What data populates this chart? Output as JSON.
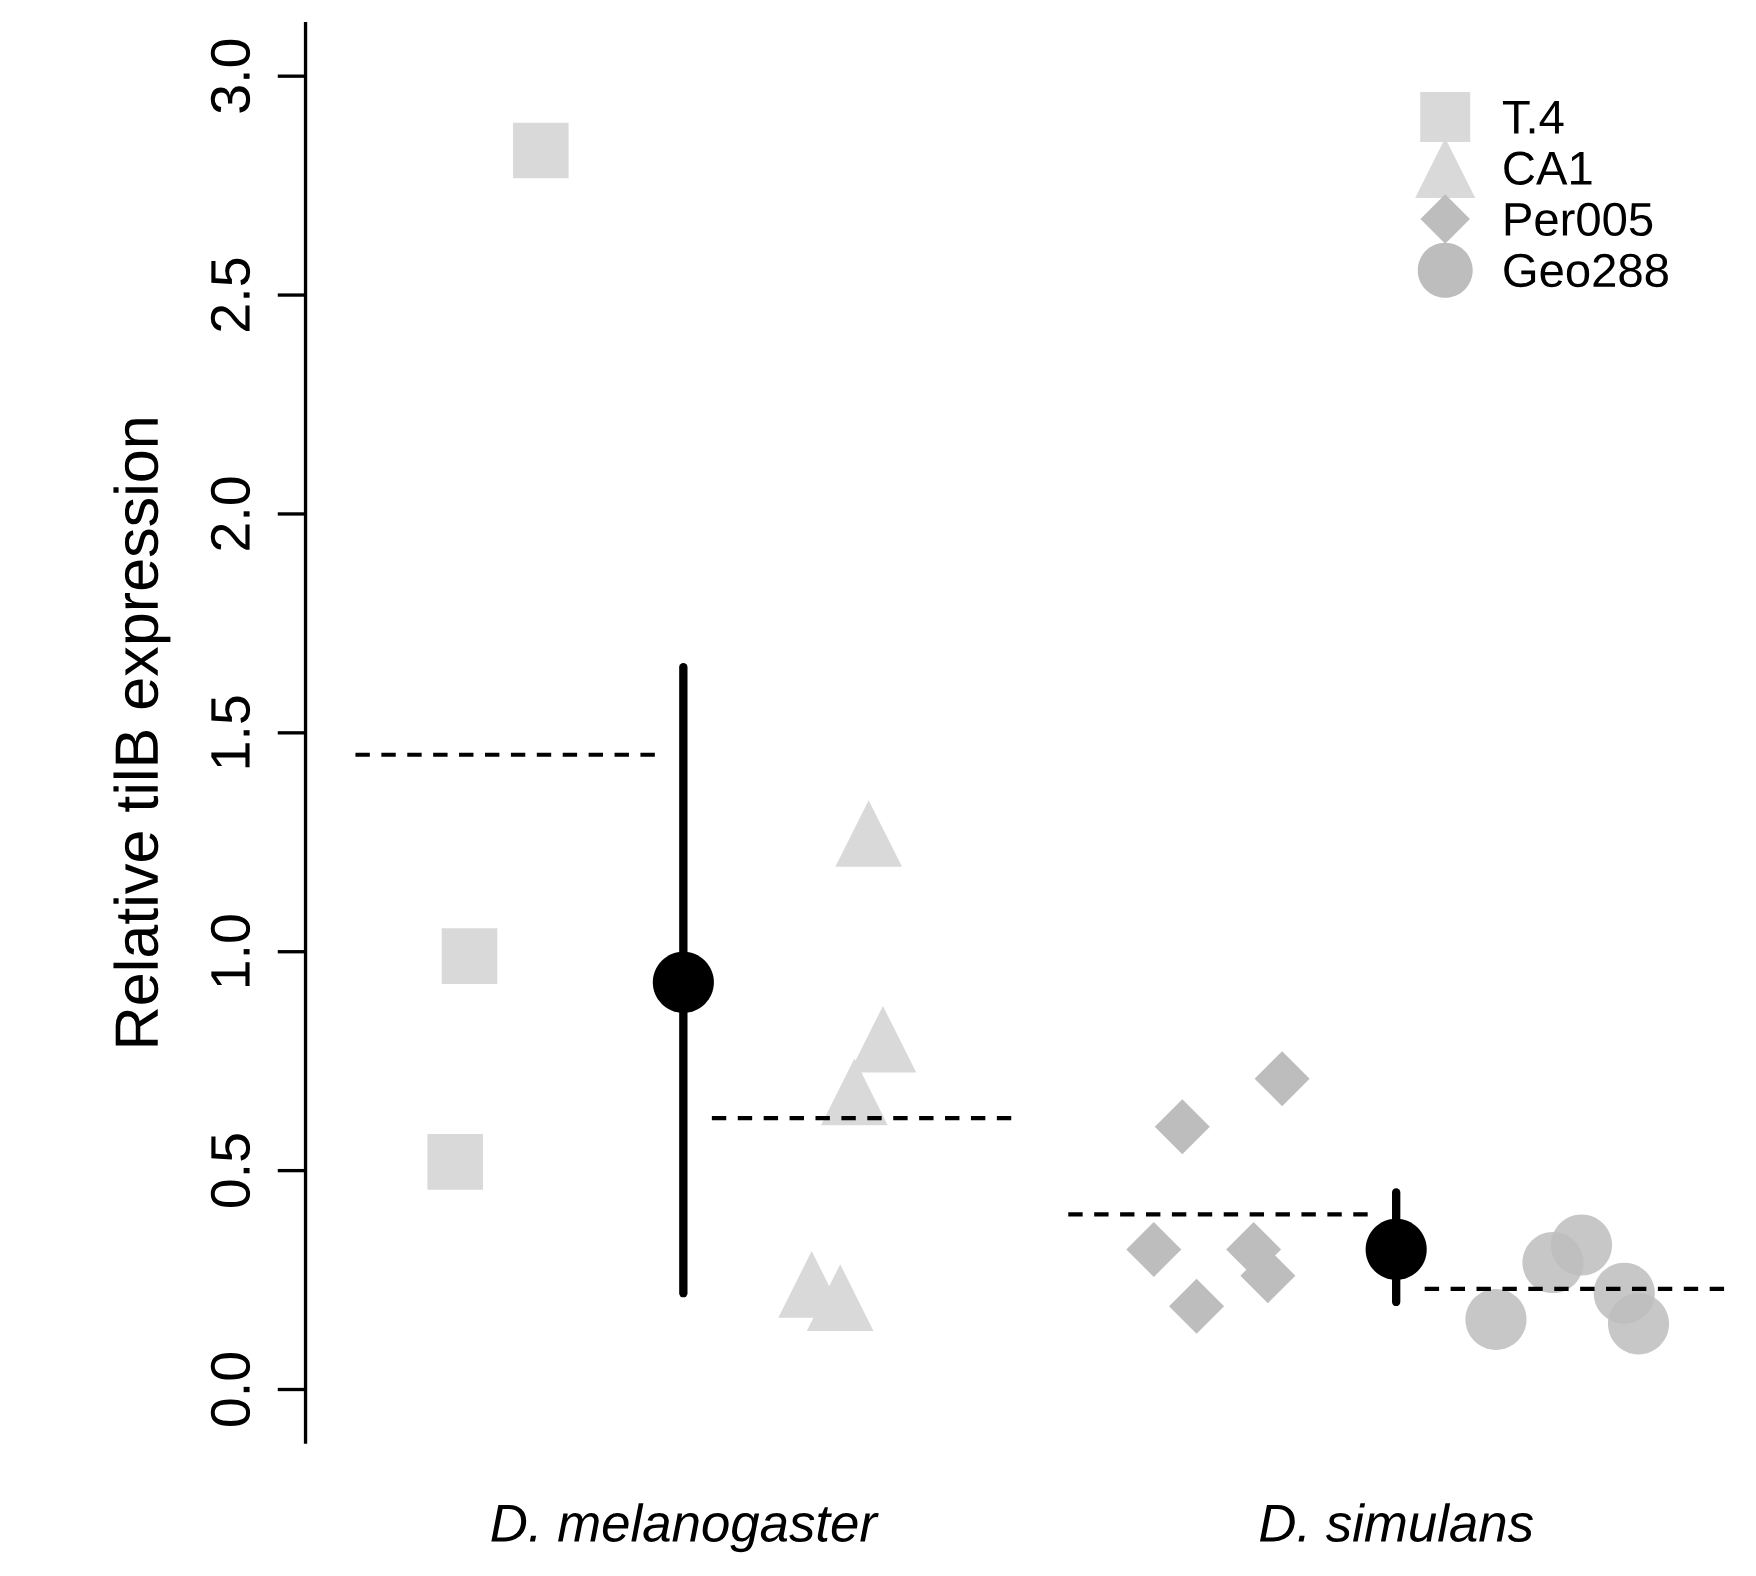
{
  "chart_data": {
    "type": "scatter",
    "ylabel": "Relative tilB expression",
    "categories": [
      null,
      null,
      null,
      null,
      null,
      null,
      null,
      null,
      null,
      null,
      null,
      null,
      null,
      null,
      null,
      null,
      null,
      null,
      null,
      null,
      null,
      null,
      null,
      null,
      null,
      null,
      "D. melanogaster",
      null,
      null,
      null,
      null,
      null,
      null,
      null,
      null,
      null,
      null,
      null,
      null,
      null,
      null,
      null,
      null,
      null,
      null,
      null,
      null,
      null,
      null,
      null,
      null,
      null,
      null,
      null,
      null,
      null,
      null,
      null,
      null,
      null,
      null,
      null,
      null,
      null,
      null,
      null,
      null,
      null,
      null,
      null,
      null,
      null,
      null,
      null,
      null,
      null,
      "D. simulans",
      null,
      null,
      null,
      null,
      null,
      null,
      null,
      null,
      null,
      null,
      null,
      null,
      null,
      null,
      null,
      null,
      null,
      null,
      null,
      null,
      null,
      null,
      null,
      null
    ],
    "ylim": [
      -0.12,
      3.12
    ],
    "yticks": [
      {
        "value": 0,
        "label": "0.0"
      },
      {
        "value": 0.5,
        "label": "0.5"
      },
      {
        "value": 1,
        "label": "1.0"
      },
      {
        "value": 1.5,
        "label": "1.5"
      },
      {
        "value": 2,
        "label": "2.0"
      },
      {
        "value": 2.5,
        "label": "2.5"
      },
      {
        "value": 3,
        "label": "3.0"
      }
    ],
    "grid": false,
    "legend": "top right",
    "series": [
      {
        "type": "line",
        "line_style": "dashed",
        "marker": "none",
        "color": "#000000",
        "values": [
          null,
          null,
          null,
          1.45,
          1.45,
          1.45,
          1.45,
          1.45,
          1.45,
          1.45,
          1.45,
          1.45,
          1.45,
          1.45,
          1.45,
          1.45,
          1.45,
          1.45,
          1.45,
          1.45,
          1.45,
          1.45,
          1.45,
          1.45,
          1.45,
          null,
          null,
          null,
          null,
          null,
          null,
          null,
          null,
          null,
          null,
          null,
          null,
          null,
          null,
          null,
          null,
          null,
          null,
          null,
          null,
          null,
          null,
          null,
          null,
          null,
          null,
          null,
          null,
          null,
          null,
          null,
          null,
          null,
          null,
          null,
          null,
          null,
          null,
          null,
          null,
          null,
          null,
          null,
          null,
          null,
          null,
          null,
          null,
          null,
          null,
          null,
          null,
          null,
          null,
          null,
          null,
          null,
          null,
          null,
          null,
          null,
          null,
          null,
          null,
          null,
          null,
          null,
          null,
          null,
          null,
          null,
          null,
          null,
          null,
          null,
          null
        ]
      },
      {
        "type": "line",
        "line_style": "dashed",
        "marker": "none",
        "color": "#000000",
        "values": [
          null,
          null,
          null,
          null,
          null,
          null,
          null,
          null,
          null,
          null,
          null,
          null,
          null,
          null,
          null,
          null,
          null,
          null,
          null,
          null,
          null,
          null,
          null,
          null,
          null,
          null,
          null,
          null,
          0.62,
          0.62,
          0.62,
          0.62,
          0.62,
          0.62,
          0.62,
          0.62,
          0.62,
          0.62,
          0.62,
          0.62,
          0.62,
          0.62,
          0.62,
          0.62,
          0.62,
          0.62,
          0.62,
          0.62,
          0.62,
          0.62,
          null,
          null,
          null,
          null,
          null,
          null,
          null,
          null,
          null,
          null,
          null,
          null,
          null,
          null,
          null,
          null,
          null,
          null,
          null,
          null,
          null,
          null,
          null,
          null,
          null,
          null,
          null,
          null,
          null,
          null,
          null,
          null,
          null,
          null,
          null,
          null,
          null,
          null,
          null,
          null,
          null,
          null,
          null,
          null,
          null,
          null,
          null,
          null,
          null,
          null,
          null
        ]
      },
      {
        "type": "line",
        "line_style": "dashed",
        "marker": "none",
        "color": "#000000",
        "values": [
          null,
          null,
          null,
          null,
          null,
          null,
          null,
          null,
          null,
          null,
          null,
          null,
          null,
          null,
          null,
          null,
          null,
          null,
          null,
          null,
          null,
          null,
          null,
          null,
          null,
          null,
          null,
          null,
          null,
          null,
          null,
          null,
          null,
          null,
          null,
          null,
          null,
          null,
          null,
          null,
          null,
          null,
          null,
          null,
          null,
          null,
          null,
          null,
          null,
          null,
          null,
          null,
          null,
          0.4,
          0.4,
          0.4,
          0.4,
          0.4,
          0.4,
          0.4,
          0.4,
          0.4,
          0.4,
          0.4,
          0.4,
          0.4,
          0.4,
          0.4,
          0.4,
          0.4,
          0.4,
          0.4,
          0.4,
          0.4,
          0.4,
          null,
          null,
          null,
          null,
          null,
          null,
          null,
          null,
          null,
          null,
          null,
          null,
          null,
          null,
          null,
          null,
          null,
          null,
          null,
          null,
          null,
          null,
          null,
          null,
          null,
          null
        ]
      },
      {
        "type": "line",
        "line_style": "dashed",
        "marker": "none",
        "color": "#000000",
        "values": [
          null,
          null,
          null,
          null,
          null,
          null,
          null,
          null,
          null,
          null,
          null,
          null,
          null,
          null,
          null,
          null,
          null,
          null,
          null,
          null,
          null,
          null,
          null,
          null,
          null,
          null,
          null,
          null,
          null,
          null,
          null,
          null,
          null,
          null,
          null,
          null,
          null,
          null,
          null,
          null,
          null,
          null,
          null,
          null,
          null,
          null,
          null,
          null,
          null,
          null,
          null,
          null,
          null,
          null,
          null,
          null,
          null,
          null,
          null,
          null,
          null,
          null,
          null,
          null,
          null,
          null,
          null,
          null,
          null,
          null,
          null,
          null,
          null,
          null,
          null,
          null,
          null,
          null,
          0.23,
          0.23,
          0.23,
          0.23,
          0.23,
          0.23,
          0.23,
          0.23,
          0.23,
          0.23,
          0.23,
          0.23,
          0.23,
          0.23,
          0.23,
          0.23,
          0.23,
          0.23,
          0.23,
          0.23,
          0.23,
          0.23,
          null
        ]
      },
      {
        "name": "T.4",
        "marker": "square",
        "color": "#d9d9d9",
        "values": [
          null,
          null,
          null,
          null,
          null,
          null,
          null,
          null,
          null,
          null,
          0.52,
          0.99,
          null,
          null,
          null,
          null,
          2.83,
          null,
          null,
          null,
          null,
          null,
          null,
          null,
          null,
          null,
          null,
          null,
          null,
          null,
          null,
          null,
          null,
          null,
          null,
          null,
          null,
          null,
          null,
          null,
          null,
          null,
          null,
          null,
          null,
          null,
          null,
          null,
          null,
          null,
          null,
          null,
          null,
          null,
          null,
          null,
          null,
          null,
          null,
          null,
          null,
          null,
          null,
          null,
          null,
          null,
          null,
          null,
          null,
          null,
          null,
          null,
          null,
          null,
          null,
          null,
          null,
          null,
          null,
          null,
          null,
          null,
          null,
          null,
          null,
          null,
          null,
          null,
          null,
          null,
          null,
          null,
          null,
          null,
          null,
          null,
          null,
          null,
          null,
          null,
          null
        ]
      },
      {
        "name": "CA1",
        "marker": "triangle",
        "color": "#d9d9d9",
        "values": [
          null,
          null,
          null,
          null,
          null,
          null,
          null,
          null,
          null,
          null,
          null,
          null,
          null,
          null,
          null,
          null,
          null,
          null,
          null,
          null,
          null,
          null,
          null,
          null,
          null,
          null,
          null,
          null,
          null,
          null,
          null,
          null,
          null,
          null,
          null,
          0.24,
          null,
          0.21,
          0.68,
          1.27,
          0.8,
          null,
          null,
          null,
          null,
          null,
          null,
          null,
          null,
          null,
          null,
          null,
          null,
          null,
          null,
          null,
          null,
          null,
          null,
          null,
          null,
          null,
          null,
          null,
          null,
          null,
          null,
          null,
          null,
          null,
          null,
          null,
          null,
          null,
          null,
          null,
          null,
          null,
          null,
          null,
          null,
          null,
          null,
          null,
          null,
          null,
          null,
          null,
          null,
          null,
          null,
          null,
          null,
          null,
          null,
          null,
          null,
          null,
          null,
          null,
          null
        ]
      },
      {
        "name": "Per005",
        "marker": "diamond",
        "color": "#bdbdbd",
        "values": [
          null,
          null,
          null,
          null,
          null,
          null,
          null,
          null,
          null,
          null,
          null,
          null,
          null,
          null,
          null,
          null,
          null,
          null,
          null,
          null,
          null,
          null,
          null,
          null,
          null,
          null,
          null,
          null,
          null,
          null,
          null,
          null,
          null,
          null,
          null,
          null,
          null,
          null,
          null,
          null,
          null,
          null,
          null,
          null,
          null,
          null,
          null,
          null,
          null,
          null,
          null,
          null,
          null,
          null,
          null,
          null,
          null,
          null,
          null,
          0.32,
          null,
          0.6,
          0.19,
          null,
          null,
          null,
          0.32,
          0.26,
          0.71,
          null,
          null,
          null,
          null,
          null,
          null,
          null,
          null,
          null,
          null,
          null,
          null,
          null,
          null,
          null,
          null,
          null,
          null,
          null,
          null,
          null,
          null,
          null,
          null,
          null,
          null,
          null,
          null,
          null,
          null,
          null,
          null
        ]
      },
      {
        "name": "Geo288",
        "marker": "circle",
        "color": "#bdbdbd",
        "values": [
          null,
          null,
          null,
          null,
          null,
          null,
          null,
          null,
          null,
          null,
          null,
          null,
          null,
          null,
          null,
          null,
          null,
          null,
          null,
          null,
          null,
          null,
          null,
          null,
          null,
          null,
          null,
          null,
          null,
          null,
          null,
          null,
          null,
          null,
          null,
          null,
          null,
          null,
          null,
          null,
          null,
          null,
          null,
          null,
          null,
          null,
          null,
          null,
          null,
          null,
          null,
          null,
          null,
          null,
          null,
          null,
          null,
          null,
          null,
          null,
          null,
          null,
          null,
          null,
          null,
          null,
          null,
          null,
          null,
          null,
          null,
          null,
          null,
          null,
          null,
          null,
          null,
          null,
          null,
          null,
          null,
          null,
          null,
          0.16,
          null,
          null,
          null,
          0.29,
          null,
          0.33,
          null,
          null,
          0.22,
          0.15,
          null,
          null,
          null,
          null,
          null,
          null,
          null
        ]
      },
      {
        "marker": "circle",
        "color": "#000000",
        "values": [
          null,
          null,
          null,
          null,
          null,
          null,
          null,
          null,
          null,
          null,
          null,
          null,
          null,
          null,
          null,
          null,
          null,
          null,
          null,
          null,
          null,
          null,
          null,
          null,
          null,
          null,
          0.93,
          null,
          null,
          null,
          null,
          null,
          null,
          null,
          null,
          null,
          null,
          null,
          null,
          null,
          null,
          null,
          null,
          null,
          null,
          null,
          null,
          null,
          null,
          null,
          null,
          null,
          null,
          null,
          null,
          null,
          null,
          null,
          null,
          null,
          null,
          null,
          null,
          null,
          null,
          null,
          null,
          null,
          null,
          null,
          null,
          null,
          null,
          null,
          null,
          null,
          0.32,
          null,
          null,
          null,
          null,
          null,
          null,
          null,
          null,
          null,
          null,
          null,
          null,
          null,
          null,
          null,
          null,
          null,
          null,
          null,
          null,
          null,
          null,
          null,
          null
        ],
        "errors": [
          null,
          null,
          null,
          null,
          null,
          null,
          null,
          null,
          null,
          null,
          null,
          null,
          null,
          null,
          null,
          null,
          null,
          null,
          null,
          null,
          null,
          null,
          null,
          null,
          null,
          null,
          [
            0.22,
            1.65
          ],
          null,
          null,
          null,
          null,
          null,
          null,
          null,
          null,
          null,
          null,
          null,
          null,
          null,
          null,
          null,
          null,
          null,
          null,
          null,
          null,
          null,
          null,
          null,
          null,
          null,
          null,
          null,
          null,
          null,
          null,
          null,
          null,
          null,
          null,
          null,
          null,
          null,
          null,
          null,
          null,
          null,
          null,
          null,
          null,
          null,
          null,
          null,
          null,
          null,
          [
            0.2,
            0.45
          ],
          null,
          null,
          null,
          null,
          null,
          null,
          null,
          null,
          null,
          null,
          null,
          null,
          null,
          null,
          null,
          null,
          null,
          null,
          null,
          null,
          null,
          null,
          null,
          null
        ]
      }
    ]
  }
}
